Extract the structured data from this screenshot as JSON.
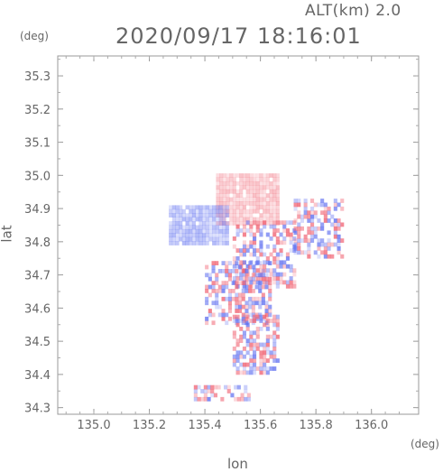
{
  "header": {
    "altitude_label": "ALT(km)  2.0",
    "timestamp": "2020/09/17 18:16:01"
  },
  "axes": {
    "y_unit": "(deg)",
    "x_unit": "(deg)",
    "x_label": "lon",
    "y_label": "lat",
    "x_ticks": [
      "135.0",
      "135.2",
      "135.4",
      "135.6",
      "135.8",
      "136.0"
    ],
    "y_ticks": [
      "34.3",
      "34.4",
      "34.5",
      "34.6",
      "34.7",
      "34.8",
      "34.9",
      "35.0",
      "35.1",
      "35.2",
      "35.3"
    ]
  },
  "chart_data": {
    "type": "heatmap",
    "xlabel": "lon",
    "ylabel": "lat",
    "xlim": [
      134.87,
      136.17
    ],
    "ylim": [
      34.28,
      35.36
    ],
    "grid": false,
    "colors": {
      "positive": "#f06070",
      "negative": "#6070f0"
    },
    "regions": [
      {
        "sign": "positive",
        "lon": [
          135.44,
          135.66
        ],
        "lat": [
          34.85,
          35.0
        ]
      },
      {
        "sign": "negative",
        "lon": [
          135.27,
          135.48
        ],
        "lat": [
          34.79,
          34.91
        ]
      },
      {
        "sign": "mixed",
        "lon": [
          135.5,
          135.72
        ],
        "lat": [
          34.66,
          34.86
        ]
      },
      {
        "sign": "mixed",
        "lon": [
          135.72,
          135.9
        ],
        "lat": [
          34.75,
          34.93
        ]
      },
      {
        "sign": "mixed",
        "lon": [
          135.4,
          135.64
        ],
        "lat": [
          34.55,
          34.74
        ]
      },
      {
        "sign": "mixed",
        "lon": [
          135.5,
          135.66
        ],
        "lat": [
          34.4,
          34.58
        ]
      },
      {
        "sign": "mixed",
        "lon": [
          135.36,
          135.56
        ],
        "lat": [
          34.32,
          34.36
        ]
      }
    ]
  }
}
